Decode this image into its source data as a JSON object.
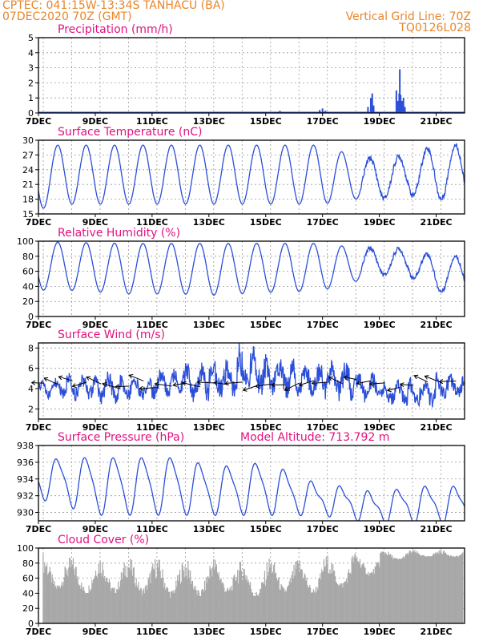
{
  "header": {
    "line1": "CPTEC:   041:15W-13:34S   TANHACU (BA)",
    "line2": "07DEC2020 70Z (GMT)",
    "right1": "Vertical Grid Line: 70Z",
    "right2": "TQ0126L028"
  },
  "x_axis": {
    "tick_labels": [
      "7DEC",
      "9DEC",
      "11DEC",
      "13DEC",
      "15DEC",
      "17DEC",
      "19DEC",
      "21DEC"
    ],
    "range_days": [
      7,
      22
    ],
    "tick_days": [
      7,
      9,
      11,
      13,
      15,
      17,
      19,
      21
    ],
    "grid_days": [
      7.17,
      8.17,
      9.17,
      10.17,
      11.17,
      12.17,
      13.17,
      14.17,
      15.17,
      16.17,
      17.17,
      18.17,
      19.17,
      20.17,
      21.17
    ]
  },
  "colors": {
    "line": "#2b4fd8",
    "title": "#e0117f",
    "header": "#e8862a",
    "grid": "#9a9a9a",
    "cloud": "#a8a8a8"
  },
  "chart_data": [
    {
      "id": "precip",
      "type": "bar",
      "title": "Precipitation (mm/h)",
      "ylim": [
        0,
        5
      ],
      "yticks": [
        0,
        1,
        2,
        3,
        4,
        5
      ],
      "x": [
        7.5,
        8.5,
        10.5,
        12.5,
        15.5,
        16.9,
        17.0,
        17.1,
        18.6,
        18.7,
        18.75,
        18.8,
        19.6,
        19.65,
        19.7,
        19.72,
        19.75,
        19.8,
        19.85,
        19.9
      ],
      "values": [
        0.03,
        0.03,
        0.03,
        0.03,
        0.15,
        0.2,
        0.3,
        0.15,
        0.4,
        1.0,
        1.3,
        0.5,
        1.5,
        0.8,
        1.3,
        2.9,
        1.2,
        0.8,
        1.0,
        0.4
      ]
    },
    {
      "id": "temp",
      "type": "line",
      "title": "Surface Temperature (nC)",
      "ylim": [
        15,
        30
      ],
      "yticks": [
        15,
        18,
        21,
        24,
        27,
        30
      ],
      "mins": [
        16,
        17,
        17,
        17,
        17,
        17,
        17,
        17,
        17,
        17,
        17,
        18,
        18,
        19,
        18
      ],
      "maxs": [
        29,
        29,
        29,
        29,
        29,
        29,
        29,
        29,
        29,
        29,
        29,
        27,
        26,
        27,
        29
      ]
    },
    {
      "id": "rh",
      "type": "line",
      "title": "Relative Humidity (%)",
      "ylim": [
        0,
        100
      ],
      "yticks": [
        0,
        20,
        40,
        60,
        80,
        100
      ],
      "mins": [
        35,
        35,
        33,
        30,
        30,
        30,
        28,
        30,
        32,
        33,
        35,
        45,
        55,
        55,
        33
      ],
      "maxs": [
        100,
        98,
        98,
        97,
        97,
        97,
        97,
        97,
        97,
        97,
        97,
        92,
        90,
        90,
        80
      ]
    },
    {
      "id": "wind",
      "type": "line",
      "title": "Surface Wind (m/s)",
      "ylim": [
        1,
        8.5
      ],
      "yticks": [
        2,
        4,
        6,
        8
      ],
      "base": [
        4.0,
        4.2,
        4.1,
        4.0,
        4.4,
        4.6,
        5.0,
        5.8,
        5.2,
        4.8,
        4.8,
        4.2,
        3.5,
        3.6,
        4.2
      ],
      "amp": [
        0.8,
        1.0,
        1.2,
        1.0,
        1.2,
        1.5,
        1.5,
        2.0,
        1.6,
        1.3,
        1.5,
        1.2,
        1.0,
        1.2,
        1.0
      ],
      "barb_y": 4.5
    },
    {
      "id": "pres",
      "type": "line",
      "title": "Surface Pressure (hPa)",
      "annotation": "Model Altitude: 713.792 m",
      "ylim": [
        929,
        938
      ],
      "yticks": [
        930,
        932,
        934,
        936,
        938
      ],
      "mins": [
        932,
        931,
        930,
        930,
        930,
        930,
        930,
        930,
        930,
        930,
        930,
        929.5,
        929,
        929,
        929
      ],
      "maxs": [
        936,
        936.5,
        936.5,
        936.5,
        936.5,
        936.5,
        935.5,
        935.5,
        936,
        934.5,
        933,
        933,
        932,
        933,
        933
      ]
    },
    {
      "id": "cloud",
      "type": "bar",
      "title": "Cloud Cover (%)",
      "ylim": [
        0,
        100
      ],
      "yticks": [
        0,
        20,
        40,
        60,
        80,
        100
      ],
      "daily_max": [
        95,
        90,
        92,
        90,
        90,
        88,
        90,
        85,
        90,
        88,
        92,
        95,
        98,
        98,
        98
      ],
      "daily_min": [
        30,
        25,
        25,
        25,
        20,
        20,
        25,
        20,
        25,
        25,
        35,
        55,
        80,
        85,
        85
      ]
    }
  ]
}
